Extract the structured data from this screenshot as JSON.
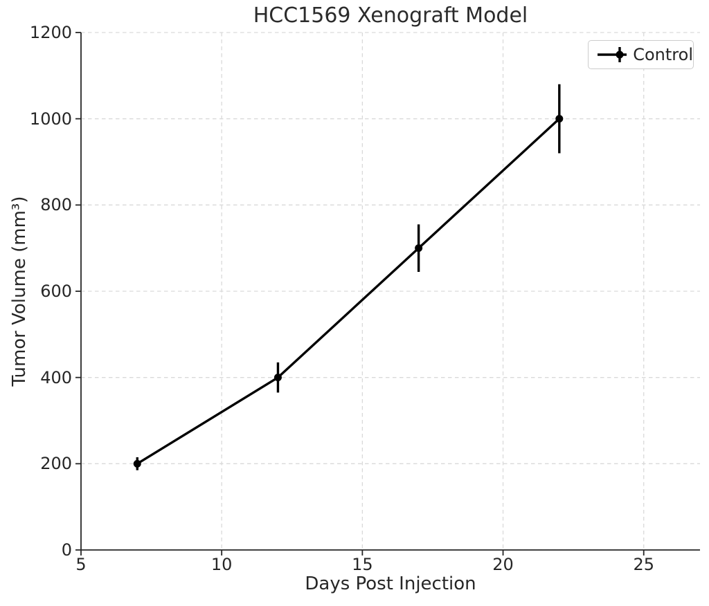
{
  "title": "HCC1569 Xenograft Model",
  "chart_data": {
    "type": "line",
    "title": "HCC1569 Xenograft Model",
    "xlabel": "Days Post Injection",
    "ylabel": "Tumor Volume (mm³)",
    "xlim": [
      5,
      27
    ],
    "ylim": [
      0,
      1200
    ],
    "xticks": [
      5,
      10,
      15,
      20,
      25
    ],
    "yticks": [
      0,
      200,
      400,
      600,
      800,
      1000,
      1200
    ],
    "grid": true,
    "grid_style": "dashed",
    "legend_position": "upper right",
    "series": [
      {
        "name": "Control",
        "color": "#000000",
        "marker": "circle",
        "x": [
          7,
          12,
          17,
          22
        ],
        "y": [
          200,
          400,
          700,
          1000
        ],
        "yerr": [
          15,
          35,
          55,
          80
        ]
      }
    ]
  },
  "colors": {
    "series_line": "#000000",
    "text": "#262626",
    "grid": "#d9d9d9",
    "spine": "#262626",
    "legend_border": "#cccccc",
    "background": "#ffffff"
  }
}
